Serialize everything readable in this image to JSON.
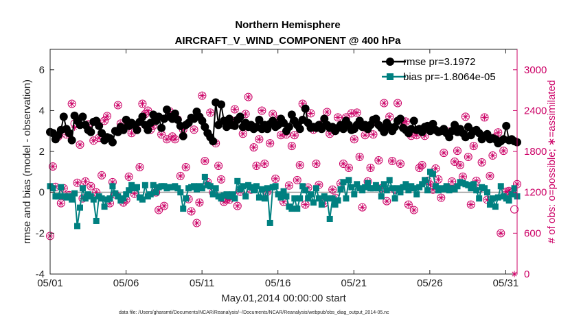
{
  "chart_data": {
    "type": "line",
    "title": "Northern Hemisphere",
    "subtitle": "AIRCRAFT_V_WIND_COMPONENT @ 400 hPa",
    "xlabel": "May.01,2014 00:00:00 start",
    "ylabel_left": "rmse and bias (model - observation)",
    "ylabel_right": "# of obs: o=possible; ∗=assimilated",
    "footnote": "data file: /Users/gharamti/Documents/NCAR/Reanalysis/~/Documents/NCAR/Reanalysis/webpub/obs_diag_output_2014-05.nc",
    "x_ticks": [
      {
        "day": 1,
        "label": "05/01"
      },
      {
        "day": 6,
        "label": "05/06"
      },
      {
        "day": 11,
        "label": "05/11"
      },
      {
        "day": 16,
        "label": "05/16"
      },
      {
        "day": 21,
        "label": "05/21"
      },
      {
        "day": 26,
        "label": "05/26"
      },
      {
        "day": 31,
        "label": "05/31"
      }
    ],
    "x_range_days": [
      1,
      31.75
    ],
    "ylim_left": [
      -4,
      7
    ],
    "yticks_left": [
      "-4",
      "-2",
      "0",
      "2",
      "4",
      "6"
    ],
    "ylim_right": [
      0,
      3300
    ],
    "yticks_right": [
      "0",
      "600",
      "1200",
      "1800",
      "2400",
      "3000"
    ],
    "grid": false,
    "legend_position": "top-right",
    "colors": {
      "rmse": "#000000",
      "bias": "#008080",
      "obs": "#cc0066",
      "zero_line": "#aaaaaa"
    },
    "series": [
      {
        "name": "rmse pr=3.1972",
        "axis": "left",
        "marker": "circle",
        "values": [
          2.95,
          2.9,
          2.6,
          2.8,
          3.05,
          3.7,
          3.1,
          2.9,
          2.55,
          3.75,
          3.5,
          3.3,
          3.7,
          3.3,
          3.05,
          2.95,
          3.45,
          3.5,
          3.25,
          2.9,
          2.55,
          2.7,
          2.65,
          2.45,
          3.0,
          2.95,
          3.2,
          3.05,
          3.55,
          3.25,
          3.4,
          3.3,
          3.05,
          3.45,
          3.7,
          3.3,
          3.05,
          3.4,
          3.8,
          3.5,
          3.7,
          3.15,
          3.6,
          4.05,
          3.7,
          3.6,
          3.85,
          3.55,
          3.25,
          2.75,
          3.3,
          3.4,
          3.65,
          3.6,
          3.95,
          3.7,
          3.5,
          3.2,
          2.9,
          2.7,
          2.5,
          4.4,
          3.3,
          4.3,
          3.5,
          3.2,
          3.6,
          3.3,
          3.25,
          3.55,
          3.7,
          3.2,
          3.4,
          3.2,
          3.3,
          3.1,
          3.2,
          3.55,
          3.1,
          3.3,
          3.1,
          3.35,
          3.5,
          3.2,
          3.3,
          3.6,
          3.4,
          3.0,
          3.2,
          3.8,
          3.5,
          3.3,
          3.1,
          3.55,
          4.1,
          3.4,
          3.15,
          3.2,
          3.15,
          3.3,
          3.1,
          3.6,
          3.3,
          3.15,
          3.2,
          3.0,
          3.15,
          3.3,
          3.1,
          3.5,
          3.3,
          3.05,
          3.1,
          3.3,
          3.5,
          3.2,
          3.3,
          3.1,
          3.3,
          3.55,
          3.6,
          3.3,
          3.15,
          2.95,
          3.4,
          3.2,
          3.0,
          3.2,
          3.5,
          3.6,
          3.15,
          3.05,
          2.9,
          3.1,
          3.5,
          3.05,
          3.1,
          2.95,
          3.2,
          3.25,
          3.0,
          3.35,
          3.05,
          2.95,
          3.0,
          3.1,
          2.9,
          2.7,
          3.0,
          3.3,
          2.95,
          3.1,
          2.9,
          2.7,
          3.2,
          2.8,
          3.0,
          3.05,
          2.9,
          2.6,
          2.75,
          2.85,
          2.6,
          2.65,
          2.6,
          2.4,
          2.5,
          2.6,
          3.25,
          2.55,
          2.6,
          2.5,
          2.45
        ]
      },
      {
        "name": "bias pr=-1.8064e-05",
        "axis": "left",
        "marker": "square",
        "values": [
          0.3,
          0.2,
          -0.2,
          -0.2,
          0.25,
          -0.2,
          -0.25,
          -0.2,
          -0.35,
          -0.05,
          -1.65,
          -0.75,
          0.2,
          -0.3,
          -0.1,
          -0.2,
          -0.35,
          -1.4,
          -0.2,
          -0.3,
          -0.7,
          -0.35,
          -0.3,
          0.3,
          -0.05,
          -0.2,
          -0.4,
          -0.3,
          -0.1,
          0.1,
          0.35,
          0.2,
          0.25,
          -0.25,
          -0.35,
          0.35,
          -0.2,
          -0.1,
          0.35,
          0.0,
          0.25,
          0.3,
          0.3,
          0.2,
          0.25,
          0.25,
          0.3,
          0.2,
          0.0,
          -0.8,
          -0.3,
          0.2,
          0.25,
          0.3,
          0.15,
          0.3,
          0.2,
          0.75,
          0.35,
          0.3,
          -0.1,
          0.2,
          -0.2,
          -0.3,
          -0.15,
          -0.1,
          -0.2,
          -0.1,
          -0.3,
          0.55,
          0.15,
          0.3,
          -0.2,
          0.35,
          0.25,
          0.1,
          0.3,
          -0.25,
          0.15,
          -0.3,
          0.2,
          -1.5,
          0.25,
          0.3,
          -0.1,
          -0.25,
          0.05,
          -0.2,
          -0.7,
          -0.8,
          -0.3,
          -0.8,
          -0.3,
          0.3,
          0.1,
          -0.3,
          -0.1,
          -0.5,
          0.2,
          -0.3,
          -0.6,
          -0.2,
          -0.3,
          -1.3,
          -0.3,
          -0.6,
          -0.4,
          0.15,
          0.5,
          -0.3,
          0.6,
          0.25,
          -0.1,
          0.4,
          0.2,
          0.1,
          0.25,
          0.45,
          0.2,
          0.2,
          0.35,
          0.2,
          -0.2,
          0.4,
          0.1,
          0.6,
          0.2,
          -0.3,
          0.2,
          0.0,
          0.25,
          0.4,
          0.1,
          0.3,
          0.2,
          -0.1,
          0.25,
          0.4,
          0.6,
          0.1,
          1.0,
          0.9,
          0.3,
          0.1,
          0.2,
          0.15,
          0.3,
          0.1,
          0.2,
          0.15,
          0.3,
          0.5,
          0.45,
          0.4,
          0.35,
          0.2,
          0.4,
          0.1,
          -0.3,
          0.25,
          0.2,
          0.0,
          -0.6,
          -0.3,
          -0.7,
          -0.25,
          0.3,
          -0.2,
          -0.3,
          -0.4,
          -0.1,
          0.2,
          -0.2,
          -0.3,
          0.2,
          0.1,
          -0.3,
          -0.5,
          -0.3,
          -0.7,
          0.2,
          0.25,
          0.05,
          -0.5
        ]
      },
      {
        "name": "possible",
        "axis": "right",
        "marker": "circle-open",
        "values": [
          560,
          1580,
          1280,
          2020,
          1040,
          1260,
          2050,
          1160,
          2500,
          2210,
          1340,
          1900,
          1110,
          1360,
          2200,
          1290,
          1960,
          1200,
          2000,
          1450,
          2250,
          2320,
          1040,
          1350,
          1170,
          2480,
          2210,
          1050,
          1090,
          1430,
          2070,
          1180,
          2120,
          1570,
          2500,
          2350,
          2400,
          2120,
          2180,
          1200,
          940,
          2050,
          1000,
          1980,
          2390,
          2020,
          1980,
          2270,
          1440,
          2120,
          1570,
          1100,
          920,
          2120,
          750,
          1050,
          2620,
          1660,
          1350,
          2370,
          1200,
          1920,
          1590,
          1390,
          1060,
          1100,
          1090,
          2250,
          2420,
          1000,
          1210,
          2060,
          2350,
          2600,
          1240,
          1860,
          1590,
          1980,
          2400,
          1620,
          1210,
          1920,
          2350,
          1400,
          2270,
          2040,
          1060,
          2050,
          1300,
          1880,
          2040,
          1380,
          1600,
          2500,
          1020,
          1270,
          2360,
          2120,
          1620,
          1310,
          2200,
          1040,
          2380,
          2060,
          1240,
          1120,
          2300,
          1330,
          1620,
          2300,
          1560,
          2360,
          1980,
          2370,
          1720,
          980,
          2040,
          1360,
          1560,
          2050,
          2230,
          1670,
          1260,
          2510,
          1070,
          2310,
          1660,
          1240,
          2510,
          1620,
          2230,
          2240,
          1020,
          2030,
          940,
          2040,
          1560,
          1600,
          2030,
          1370,
          1310,
          1240,
          1550,
          1390,
          1120,
          1780,
          1270,
          2090,
          1360,
          1650,
          1810,
          1600,
          1430,
          2310,
          1720,
          1020,
          1880,
          1370,
          1250,
          1640,
          2300,
          1090,
          1440,
          1740,
          2010,
          2080,
          600,
          1810,
          1210,
          1220,
          1200,
          950,
          1320
        ]
      },
      {
        "name": "assimilated",
        "axis": "right",
        "marker": "asterisk",
        "values": [
          560,
          1580,
          1280,
          2020,
          1040,
          1260,
          2050,
          1160,
          2500,
          2150,
          1340,
          1900,
          1110,
          1360,
          2200,
          1290,
          1960,
          1200,
          2000,
          1450,
          2250,
          2320,
          1040,
          1350,
          1170,
          2480,
          2210,
          1050,
          1090,
          1430,
          2070,
          1180,
          2120,
          1570,
          2500,
          2350,
          2400,
          2120,
          2180,
          1200,
          940,
          2050,
          1000,
          1980,
          2390,
          2020,
          1980,
          2270,
          1440,
          2120,
          1570,
          1100,
          920,
          2120,
          750,
          1050,
          2620,
          1660,
          1350,
          2370,
          1200,
          1920,
          1590,
          1390,
          1060,
          1100,
          1090,
          2250,
          2420,
          1000,
          1210,
          2060,
          2350,
          2600,
          1240,
          1860,
          1590,
          1980,
          2400,
          1620,
          1210,
          1920,
          2350,
          1400,
          2270,
          2040,
          1060,
          2050,
          1300,
          1880,
          2040,
          1380,
          1600,
          2500,
          1020,
          1270,
          2360,
          2120,
          1620,
          1310,
          2200,
          1040,
          2380,
          2060,
          1240,
          1120,
          2300,
          1330,
          1620,
          2300,
          1560,
          2360,
          1980,
          2370,
          1720,
          980,
          2040,
          1360,
          1560,
          2050,
          2230,
          1670,
          1260,
          2510,
          1070,
          2310,
          1660,
          1240,
          2510,
          1620,
          2230,
          2240,
          1020,
          2030,
          940,
          2040,
          1560,
          1600,
          2030,
          1370,
          1310,
          1240,
          1550,
          1390,
          1120,
          1780,
          1270,
          2090,
          1360,
          1650,
          1810,
          1600,
          1430,
          2310,
          1720,
          1020,
          1880,
          1370,
          1250,
          1640,
          2300,
          1090,
          1440,
          1740,
          2010,
          2080,
          600,
          1810,
          1210,
          1220,
          1200,
          0,
          1320
        ]
      }
    ]
  }
}
